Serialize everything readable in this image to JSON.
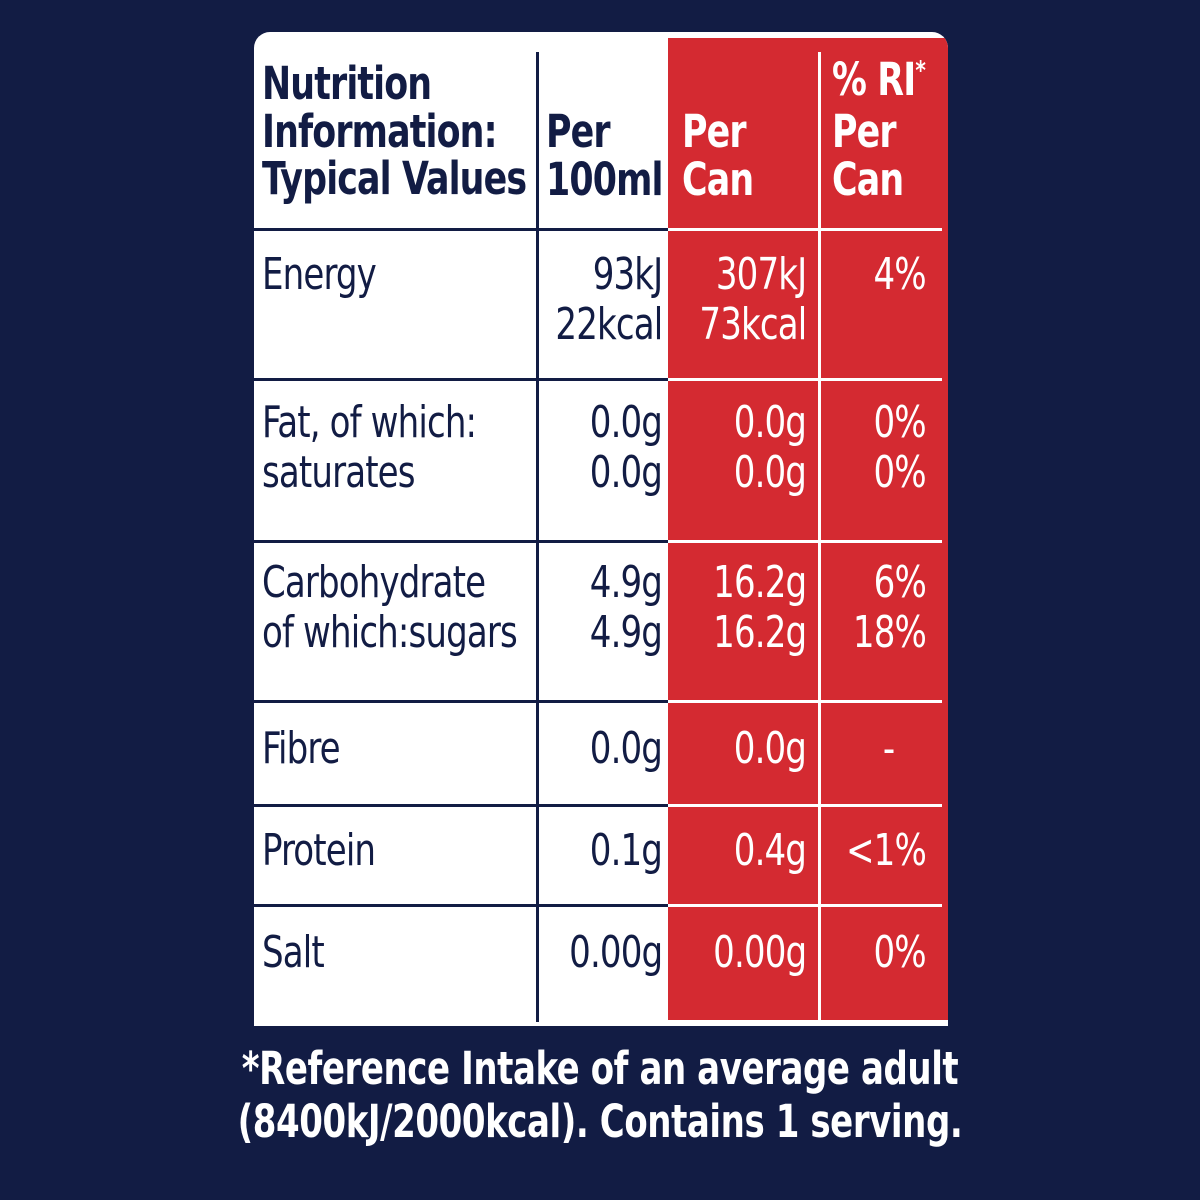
{
  "table": {
    "headers": {
      "label": "Nutrition\nInformation:\nTypical Values",
      "per100": "Per\n100ml",
      "perCan": "Per\nCan",
      "ri": "% RI",
      "ri_asterisk": "*",
      "ri_sub": "Per\nCan"
    },
    "rows": [
      {
        "name": "Energy",
        "per100": "93kJ\n22kcal",
        "perCan": "307kJ\n73kcal",
        "ri": "4%"
      },
      {
        "name": "Fat, of which:\nsaturates",
        "per100": "0.0g\n0.0g",
        "perCan": "0.0g\n0.0g",
        "ri": "0%\n0%"
      },
      {
        "name": "Carbohydrate\nof which:sugars",
        "per100": "4.9g\n4.9g",
        "perCan": "16.2g\n16.2g",
        "ri": "6%\n18%"
      },
      {
        "name": "Fibre",
        "per100": "0.0g",
        "perCan": "0.0g",
        "ri": "-"
      },
      {
        "name": "Protein",
        "per100": "0.1g",
        "perCan": "0.4g",
        "ri": "<1%"
      },
      {
        "name": "Salt",
        "per100": "0.00g",
        "perCan": "0.00g",
        "ri": "0%"
      }
    ]
  },
  "footnote": "*Reference Intake of an average adult\n(8400kJ/2000kcal). Contains 1 serving.",
  "colors": {
    "background": "#121c44",
    "panel": "#ffffff",
    "accent_red": "#d42a31"
  }
}
